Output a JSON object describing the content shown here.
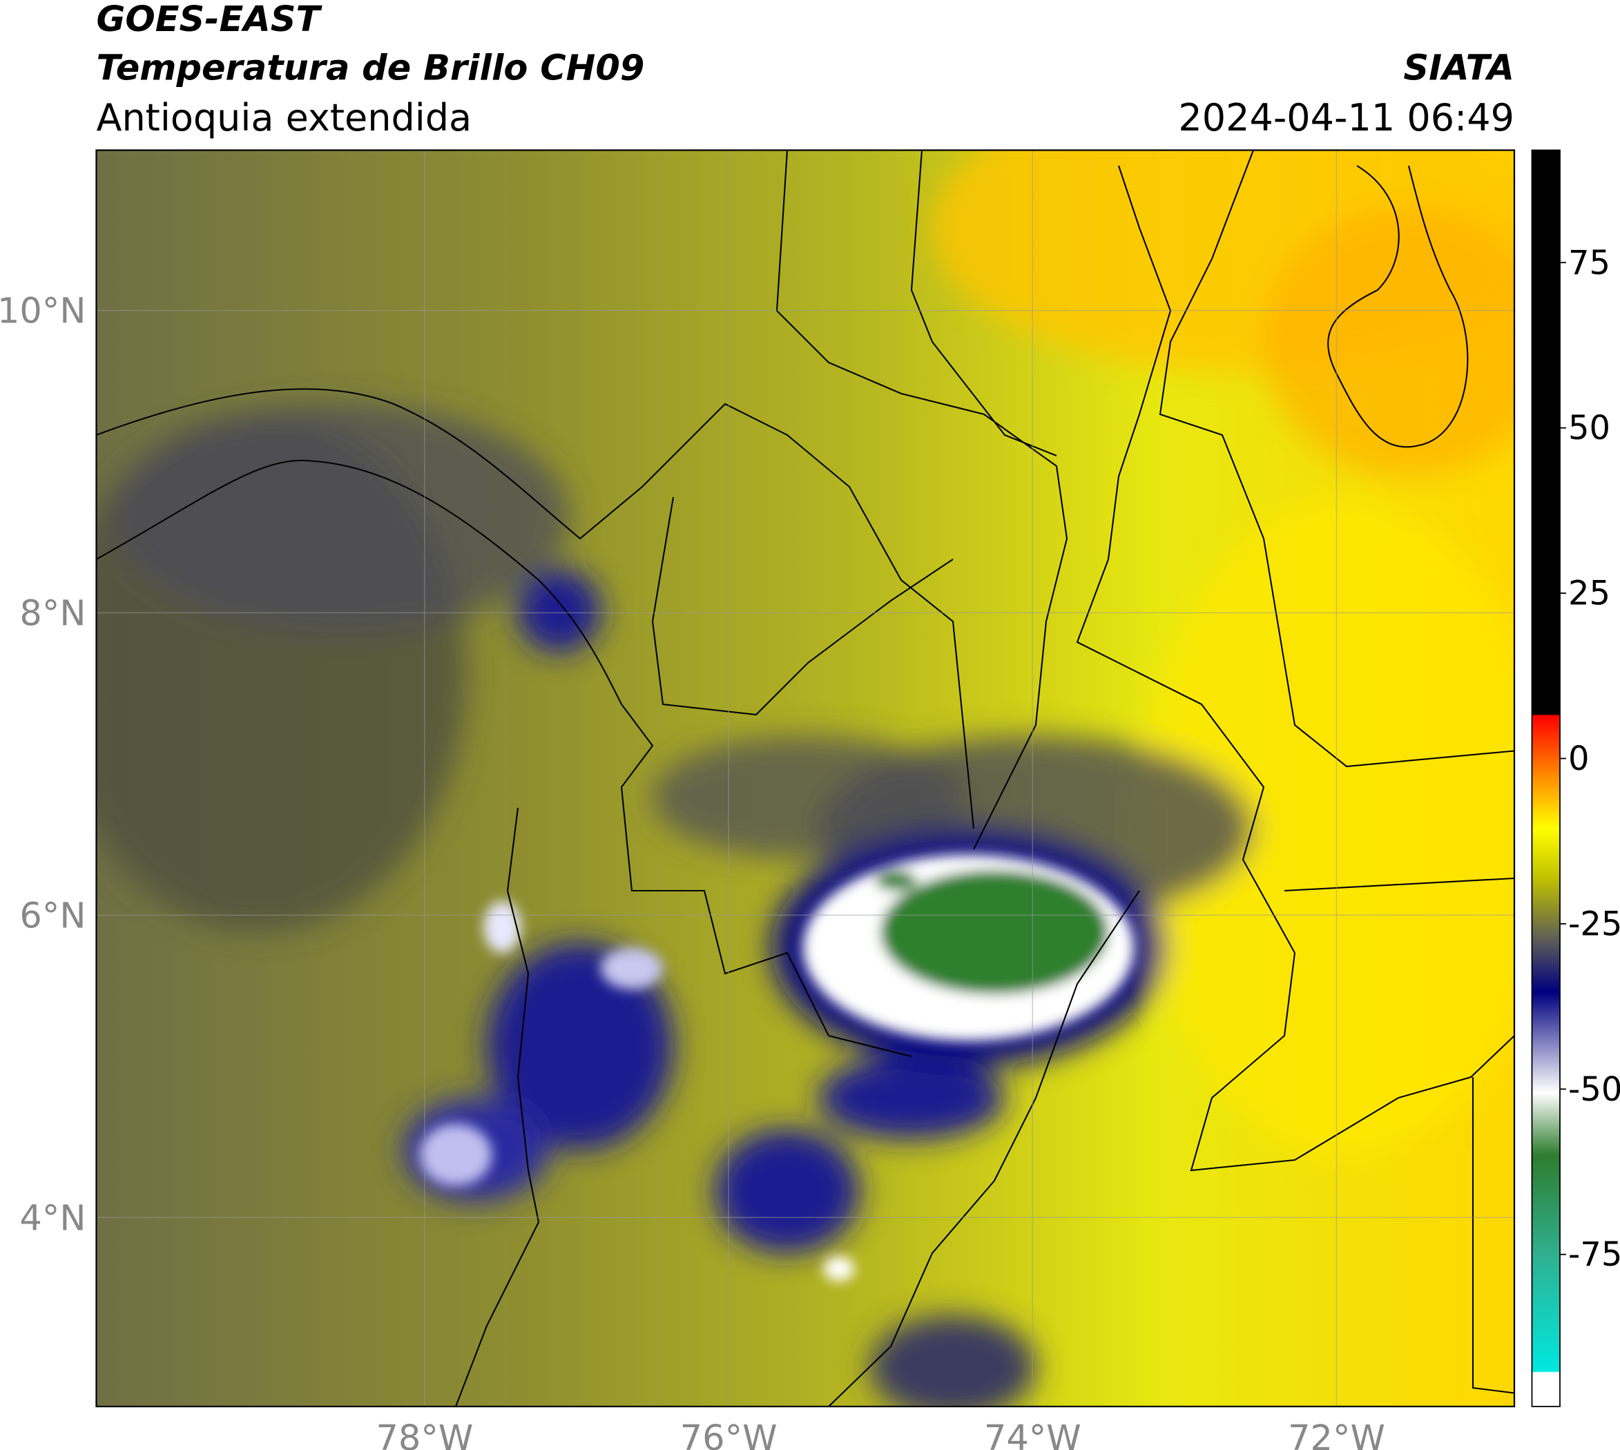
{
  "header": {
    "satellite": "GOES-EAST",
    "product": "Temperatura de Brillo CH09",
    "region": "Antioquia extendida",
    "source": "SIATA",
    "datetime": "2024-04-11 06:49"
  },
  "chart_data": {
    "type": "map",
    "xlim": [
      -80.16,
      -70.83
    ],
    "ylim": [
      2.75,
      11.06
    ],
    "xticks": [
      {
        "value": -78,
        "label": "78°W"
      },
      {
        "value": -76,
        "label": "76°W"
      },
      {
        "value": -74,
        "label": "74°W"
      },
      {
        "value": -72,
        "label": "72°W"
      }
    ],
    "yticks": [
      {
        "value": 4,
        "label": "4°N"
      },
      {
        "value": 6,
        "label": "6°N"
      },
      {
        "value": 8,
        "label": "8°N"
      },
      {
        "value": 10,
        "label": "10°N"
      }
    ],
    "grid": true,
    "colorbar": {
      "lim": [
        -98,
        92
      ],
      "ticks": [
        -75,
        -50,
        -25,
        0,
        25,
        50,
        75
      ]
    }
  }
}
